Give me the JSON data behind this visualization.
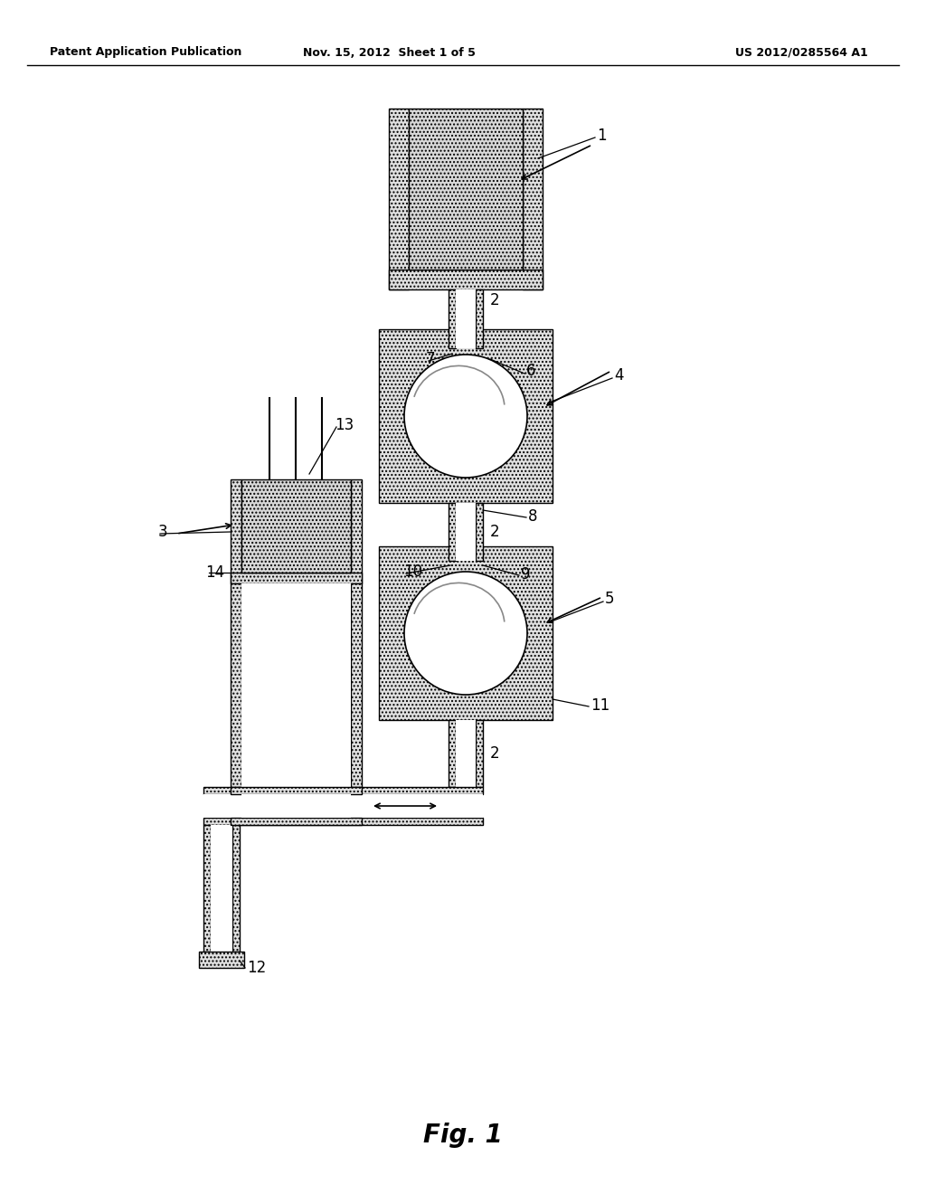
{
  "title": "Fig. 1",
  "header_left": "Patent Application Publication",
  "header_mid": "Nov. 15, 2012  Sheet 1 of 5",
  "header_right": "US 2012/0285564 A1",
  "bg_color": "#ffffff",
  "line_color": "#000000"
}
